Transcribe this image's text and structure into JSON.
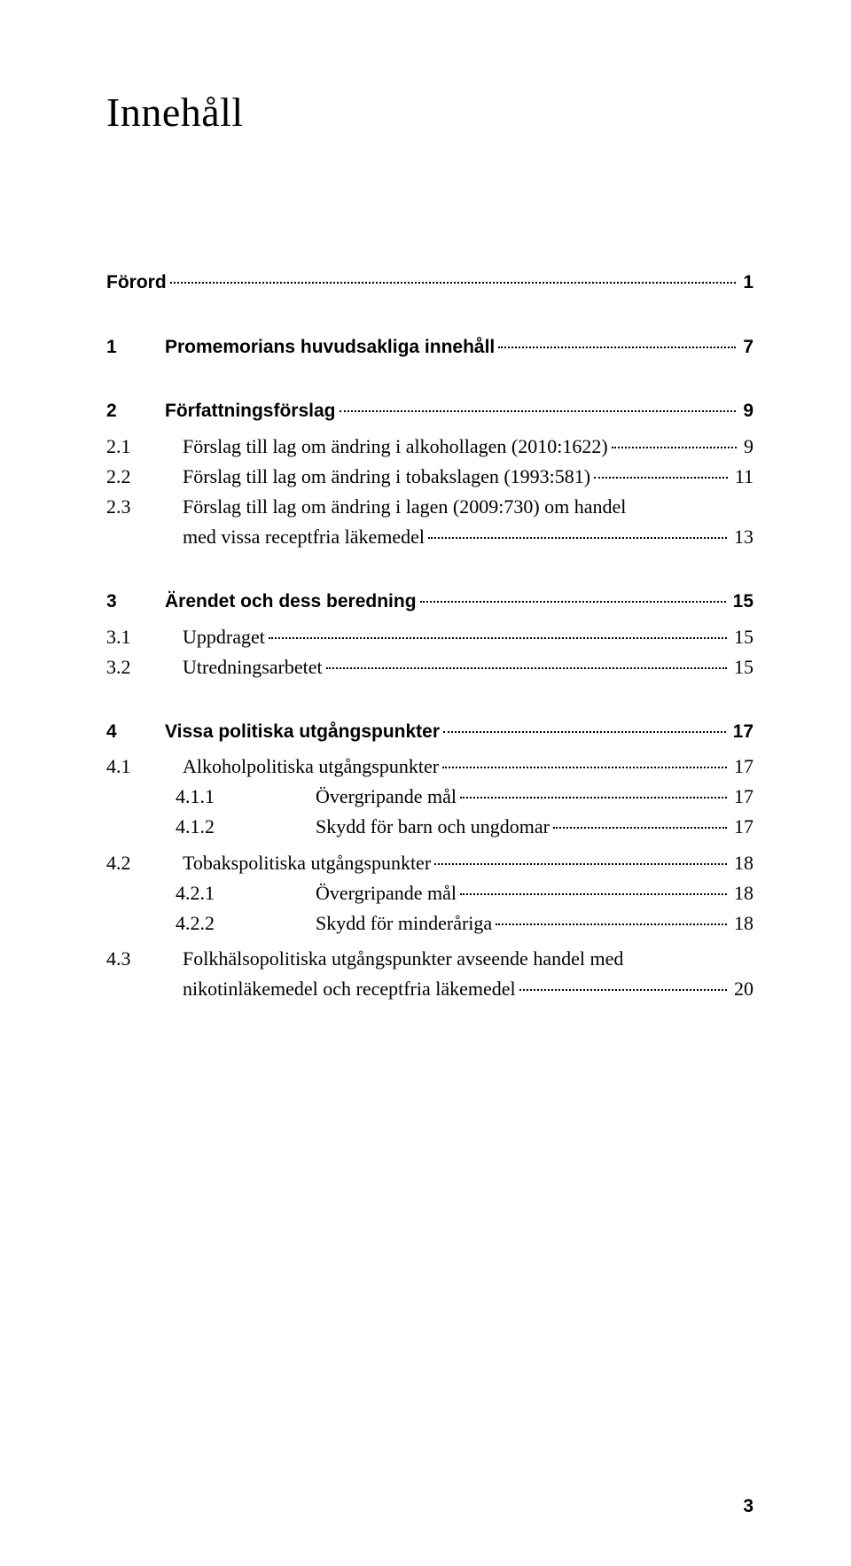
{
  "title": "Innehåll",
  "page_number": "3",
  "colors": {
    "background": "#ffffff",
    "text": "#000000",
    "leader": "#000000"
  },
  "typography": {
    "title_fontsize_pt": 34,
    "body_fontsize_pt": 16,
    "bold_fontsize_pt": 15,
    "body_family": "Georgia / serif",
    "bold_family": "Segoe UI / sans-serif"
  },
  "entries": {
    "forord": {
      "num": "",
      "text": "Förord",
      "page": "1"
    },
    "s1": {
      "num": "1",
      "text": "Promemorians huvudsakliga innehåll",
      "page": "7"
    },
    "s2": {
      "num": "2",
      "text": "Författningsförslag",
      "page": "9"
    },
    "s2_1": {
      "num": "2.1",
      "text": "Förslag till lag om ändring i alkohollagen (2010:1622)",
      "page": "9"
    },
    "s2_2": {
      "num": "2.2",
      "text": "Förslag till lag om ändring i tobakslagen (1993:581)",
      "page": "11"
    },
    "s2_3": {
      "num": "2.3",
      "text": "Förslag till lag om ändring i lagen (2009:730) om handel med vissa receptfria läkemedel",
      "page": "13"
    },
    "s3": {
      "num": "3",
      "text": "Ärendet och dess beredning",
      "page": "15"
    },
    "s3_1": {
      "num": "3.1",
      "text": "Uppdraget",
      "page": "15"
    },
    "s3_2": {
      "num": "3.2",
      "text": "Utredningsarbetet",
      "page": "15"
    },
    "s4": {
      "num": "4",
      "text": "Vissa politiska utgångspunkter",
      "page": "17"
    },
    "s4_1": {
      "num": "4.1",
      "text": "Alkoholpolitiska utgångspunkter",
      "page": "17"
    },
    "s4_1_1": {
      "num": "4.1.1",
      "text": "Övergripande mål",
      "page": "17"
    },
    "s4_1_2": {
      "num": "4.1.2",
      "text": "Skydd för barn och ungdomar",
      "page": "17"
    },
    "s4_2": {
      "num": "4.2",
      "text": "Tobakspolitiska utgångspunkter",
      "page": "18"
    },
    "s4_2_1": {
      "num": "4.2.1",
      "text": "Övergripande mål",
      "page": "18"
    },
    "s4_2_2": {
      "num": "4.2.2",
      "text": "Skydd för minderåriga",
      "page": "18"
    },
    "s4_3": {
      "num": "4.3",
      "text": "Folkhälsopolitiska utgångspunkter avseende handel med nikotinläkemedel och receptfria läkemedel",
      "page": "20"
    }
  }
}
